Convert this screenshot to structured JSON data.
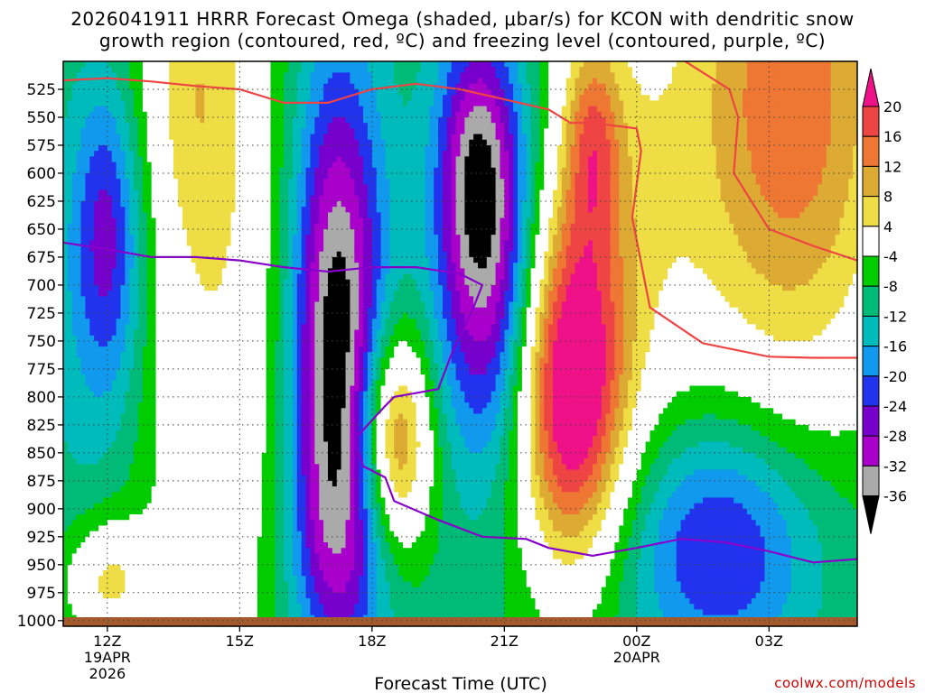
{
  "chart_data": {
    "type": "heatmap",
    "title_line1": "2026041911 HRRR Forecast Omega (shaded, μbar/s) for KCON with dendritic snow",
    "title_line2": "growth region (contoured, red, ºC) and freezing level (contoured, purple, ºC)",
    "xlabel": "Forecast Time (UTC)",
    "ylabel": "",
    "credit": "coolwx.com/models",
    "y_ticks": [
      "525",
      "550",
      "575",
      "600",
      "625",
      "650",
      "675",
      "700",
      "725",
      "750",
      "775",
      "800",
      "825",
      "850",
      "875",
      "900",
      "925",
      "950",
      "975",
      "1000"
    ],
    "y_values": [
      525,
      550,
      575,
      600,
      625,
      650,
      675,
      700,
      725,
      750,
      775,
      800,
      825,
      850,
      875,
      900,
      925,
      950,
      975,
      1000
    ],
    "ylim": [
      500,
      1005
    ],
    "xlim": [
      10.0,
      28.0
    ],
    "x_ticks": [
      {
        "label": "12Z",
        "sub1": "19APR",
        "sub2": "2026",
        "hour": 11.0
      },
      {
        "label": "15Z",
        "sub1": "",
        "sub2": "",
        "hour": 14.0
      },
      {
        "label": "18Z",
        "sub1": "",
        "sub2": "",
        "hour": 17.0
      },
      {
        "label": "21Z",
        "sub1": "",
        "sub2": "",
        "hour": 20.0
      },
      {
        "label": "00Z",
        "sub1": "20APR",
        "sub2": "",
        "hour": 23.0
      },
      {
        "label": "03Z",
        "sub1": "",
        "sub2": "",
        "hour": 26.0
      }
    ],
    "colorbar": {
      "labels": [
        "20",
        "16",
        "12",
        "8",
        "4",
        "-4",
        "-8",
        "-12",
        "-16",
        "-20",
        "-24",
        "-28",
        "-32",
        "-36"
      ],
      "colors": [
        "#ee1188",
        "#ee4444",
        "#ee7733",
        "#ddaa33",
        "#eedd44",
        "#ffffff",
        "#00cc00",
        "#00bb77",
        "#00bbbb",
        "#1199ee",
        "#2233ee",
        "#7700cc",
        "#aa00cc",
        "#aaaaaa",
        "#000000"
      ]
    },
    "omega_levels": [
      -36,
      -32,
      -28,
      -24,
      -20,
      -16,
      -12,
      -8,
      -4,
      4,
      8,
      12,
      16,
      20
    ],
    "omega_field": {
      "background": -9,
      "blobs": [
        {
          "t": 11.0,
          "p": 655,
          "st": 0.55,
          "sp": 95,
          "a": -16
        },
        {
          "t": 11.0,
          "p": 760,
          "st": 1.2,
          "sp": 180,
          "a": -6
        },
        {
          "t": 13.0,
          "p": 500,
          "st": 0.9,
          "sp": 120,
          "a": 10
        },
        {
          "t": 13.3,
          "p": 760,
          "st": 1.6,
          "sp": 260,
          "a": 12
        },
        {
          "t": 16.2,
          "p": 760,
          "st": 0.75,
          "sp": 180,
          "a": -33
        },
        {
          "t": 16.3,
          "p": 930,
          "st": 1.0,
          "sp": 70,
          "a": -6
        },
        {
          "t": 17.5,
          "p": 840,
          "st": 0.6,
          "sp": 70,
          "a": 25
        },
        {
          "t": 19.6,
          "p": 660,
          "st": 0.8,
          "sp": 130,
          "a": -28
        },
        {
          "t": 19.3,
          "p": 580,
          "st": 0.55,
          "sp": 70,
          "a": -8
        },
        {
          "t": 21.5,
          "p": 800,
          "st": 0.85,
          "sp": 110,
          "a": 30
        },
        {
          "t": 22.0,
          "p": 570,
          "st": 0.45,
          "sp": 65,
          "a": 14
        },
        {
          "t": 22.3,
          "p": 650,
          "st": 1.4,
          "sp": 190,
          "a": 12
        },
        {
          "t": 26.5,
          "p": 530,
          "st": 1.8,
          "sp": 210,
          "a": 24
        },
        {
          "t": 24.9,
          "p": 930,
          "st": 1.6,
          "sp": 80,
          "a": -18
        },
        {
          "t": 11.0,
          "p": 965,
          "st": 0.7,
          "sp": 40,
          "a": 14
        }
      ]
    },
    "dgz_contour_red": {
      "color": "#ee4444",
      "segments": [
        [
          [
            10.0,
            517
          ],
          [
            11.0,
            515
          ],
          [
            12.0,
            518
          ],
          [
            13.0,
            522
          ],
          [
            14.0,
            525
          ],
          [
            15.0,
            537
          ],
          [
            16.0,
            537
          ],
          [
            17.0,
            525
          ],
          [
            18.0,
            520
          ],
          [
            19.0,
            525
          ],
          [
            20.0,
            534
          ],
          [
            21.0,
            543
          ],
          [
            21.5,
            555
          ],
          [
            22.0,
            555
          ],
          [
            23.0,
            560
          ],
          [
            23.1,
            580
          ],
          [
            22.9,
            640
          ],
          [
            23.3,
            720
          ],
          [
            24.5,
            752
          ],
          [
            26.0,
            764
          ],
          [
            27.0,
            765
          ],
          [
            28.0,
            765
          ]
        ],
        [
          [
            23.9,
            495
          ],
          [
            24.5,
            510
          ],
          [
            25.1,
            525
          ],
          [
            25.3,
            550
          ],
          [
            25.2,
            600
          ],
          [
            26.0,
            650
          ],
          [
            27.0,
            665
          ],
          [
            28.0,
            678
          ]
        ]
      ]
    },
    "freezing_level_purple": {
      "color": "#8800cc",
      "points": [
        [
          10.0,
          662
        ],
        [
          11.0,
          668
        ],
        [
          12.0,
          675
        ],
        [
          13.0,
          675
        ],
        [
          14.0,
          678
        ],
        [
          15.0,
          684
        ],
        [
          16.0,
          688
        ],
        [
          17.0,
          684
        ],
        [
          18.0,
          684
        ],
        [
          19.0,
          690
        ],
        [
          19.5,
          700
        ],
        [
          19.3,
          720
        ],
        [
          18.8,
          762
        ],
        [
          18.5,
          793
        ],
        [
          17.5,
          800
        ],
        [
          17.3,
          808
        ],
        [
          16.6,
          838
        ],
        [
          16.8,
          862
        ],
        [
          17.3,
          872
        ],
        [
          17.5,
          893
        ],
        [
          18.5,
          910
        ],
        [
          19.5,
          925
        ],
        [
          20.5,
          927
        ],
        [
          21.0,
          935
        ],
        [
          22.0,
          942
        ],
        [
          23.0,
          935
        ],
        [
          24.0,
          927
        ],
        [
          25.0,
          930
        ],
        [
          26.0,
          938
        ],
        [
          27.0,
          948
        ],
        [
          28.0,
          945
        ]
      ]
    },
    "terrain_color": "#a45a2a"
  }
}
